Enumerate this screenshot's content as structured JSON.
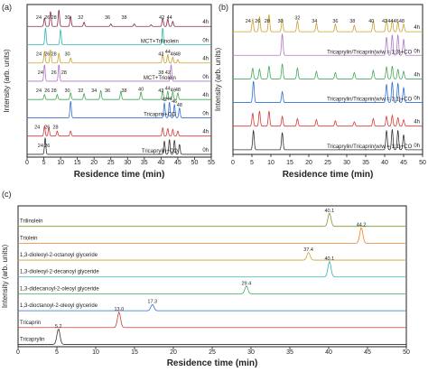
{
  "chart_data": [
    {
      "panel": "(a)",
      "type": "line",
      "xlabel": "Residence time (min)",
      "ylabel": "Intensity (arb. units)",
      "xlim": [
        0,
        55
      ],
      "xticks": [
        "0",
        "5",
        "10",
        "15",
        "20",
        "25",
        "30",
        "35",
        "40",
        "45",
        "50",
        "55"
      ],
      "traces": [
        {
          "label": "4h",
          "side": "right",
          "color": "#8b2a4a",
          "peaks": [
            [
              5.2,
              0.5
            ],
            [
              7,
              0.9
            ],
            [
              9.5,
              1.0
            ],
            [
              13,
              0.6
            ],
            [
              17,
              0.25
            ],
            [
              25,
              0.15
            ],
            [
              32,
              0.15
            ],
            [
              37,
              0.1
            ],
            [
              40.5,
              0.5
            ],
            [
              42,
              0.45
            ],
            [
              43.5,
              0.3
            ]
          ],
          "peak_labels": [
            [
              "24",
              3.5
            ],
            [
              "26",
              6
            ],
            [
              "28",
              8
            ],
            [
              "30",
              12
            ],
            [
              "32",
              16
            ],
            [
              "36",
              24
            ],
            [
              "38",
              29
            ],
            [
              "42",
              40.2
            ],
            [
              "44",
              42.5
            ]
          ]
        },
        {
          "label": "0h",
          "side": "right",
          "color": "#2fb6b0",
          "peaks": [
            [
              5.5,
              1.0
            ],
            [
              10,
              0.9
            ],
            [
              40.5,
              1.0
            ]
          ],
          "peak_labels": []
        },
        {
          "label": "MCT+Trilinolein",
          "side": "center",
          "color": "#2fb6b0"
        },
        {
          "label": "4h",
          "side": "right",
          "color": "#c8a22e",
          "peaks": [
            [
              5.2,
              0.7
            ],
            [
              7,
              0.8
            ],
            [
              9.5,
              0.6
            ],
            [
              13,
              0.3
            ],
            [
              40.5,
              0.55
            ],
            [
              42,
              0.5
            ],
            [
              43.5,
              0.35
            ],
            [
              45,
              0.2
            ]
          ],
          "peak_labels": [
            [
              "24",
              3.5
            ],
            [
              "26",
              6
            ],
            [
              "28",
              8
            ],
            [
              "30",
              12
            ],
            [
              "42",
              40
            ],
            [
              "44",
              42
            ],
            [
              "46",
              43.6
            ],
            [
              "48",
              45
            ]
          ]
        },
        {
          "label": "0h",
          "side": "right",
          "color": "#b077c9",
          "peaks": [
            [
              5.2,
              1.0
            ],
            [
              9.5,
              1.0
            ],
            [
              43,
              1.0
            ]
          ],
          "peak_labels": [
            [
              "24",
              4
            ],
            [
              "26",
              8
            ],
            [
              "28",
              11
            ],
            [
              "38",
              40
            ],
            [
              "42",
              42
            ]
          ]
        },
        {
          "label": "MCT+Triolein",
          "side": "center",
          "color": "#b077c9"
        },
        {
          "label": "4h",
          "side": "right",
          "color": "#45a85a",
          "peaks": [
            [
              5.2,
              0.3
            ],
            [
              9,
              0.3
            ],
            [
              13,
              0.4
            ],
            [
              17,
              0.35
            ],
            [
              22,
              0.55
            ],
            [
              28,
              0.5
            ],
            [
              34,
              0.45
            ],
            [
              40.5,
              0.55
            ],
            [
              42,
              0.5
            ],
            [
              43.5,
              0.45
            ],
            [
              45,
              0.4
            ]
          ],
          "peak_labels": [
            [
              "24",
              3.5
            ],
            [
              "26",
              6
            ],
            [
              "28",
              8
            ],
            [
              "30",
              12
            ],
            [
              "32",
              16
            ],
            [
              "34",
              20
            ],
            [
              "36",
              24
            ],
            [
              "38",
              29
            ],
            [
              "40",
              34
            ],
            [
              "42",
              40
            ],
            [
              "44",
              42
            ],
            [
              "46",
              43.6
            ],
            [
              "48",
              45
            ]
          ]
        },
        {
          "label": "0h",
          "side": "right",
          "color": "#2e6fd6",
          "peaks": [
            [
              13,
              1.0
            ],
            [
              41,
              0.9
            ],
            [
              42.5,
              0.95
            ],
            [
              44,
              0.8
            ],
            [
              45.5,
              0.6
            ]
          ],
          "peak_labels": [
            [
              "42",
              41
            ],
            [
              "44",
              42.5
            ],
            [
              "46",
              44
            ],
            [
              "48",
              45.5
            ]
          ]
        },
        {
          "label": "Tricaprin+CO",
          "side": "center",
          "color": "#2e6fd6"
        },
        {
          "label": "4h",
          "side": "right",
          "color": "#d43b3b",
          "peaks": [
            [
              5.2,
              0.6
            ],
            [
              6.5,
              0.5
            ],
            [
              9,
              0.3
            ],
            [
              13,
              0.3
            ],
            [
              40.5,
              0.5
            ],
            [
              42,
              0.45
            ],
            [
              43.5,
              0.4
            ],
            [
              45,
              0.3
            ]
          ],
          "peak_labels": [
            [
              "24",
              3
            ],
            [
              "26",
              6
            ],
            [
              "28",
              8.5
            ]
          ]
        },
        {
          "label": "0h",
          "side": "right",
          "color": "#333333",
          "peaks": [
            [
              5.4,
              1.0
            ],
            [
              41,
              0.8
            ],
            [
              42.5,
              0.9
            ],
            [
              44,
              0.85
            ],
            [
              45.5,
              0.6
            ]
          ],
          "peak_labels": [
            [
              "24",
              4
            ],
            [
              "26",
              6
            ]
          ]
        },
        {
          "label": "Tricaprylin+CO",
          "side": "center",
          "color": "#333333"
        }
      ]
    },
    {
      "panel": "(b)",
      "type": "line",
      "xlabel": "Residence time (min)",
      "ylabel": "Intensity (arb. units)",
      "xlim": [
        0,
        50
      ],
      "xticks": [
        "0",
        "5",
        "10",
        "15",
        "20",
        "25",
        "30",
        "35",
        "40",
        "45",
        "50"
      ],
      "traces": [
        {
          "label": "4h",
          "color": "#c8a22e",
          "peaks": [
            [
              5.2,
              0.6
            ],
            [
              7,
              0.7
            ],
            [
              9.5,
              0.8
            ],
            [
              13,
              0.6
            ],
            [
              17,
              0.5
            ],
            [
              22,
              0.4
            ],
            [
              27,
              0.35
            ],
            [
              32,
              0.3
            ],
            [
              37,
              0.5
            ],
            [
              40.5,
              0.6
            ],
            [
              42,
              0.55
            ],
            [
              43.5,
              0.45
            ],
            [
              45,
              0.35
            ]
          ],
          "peak_labels": [
            [
              "24",
              4
            ],
            [
              "26",
              6.5
            ],
            [
              "28",
              9
            ],
            [
              "30",
              12.5
            ],
            [
              "32",
              17
            ],
            [
              "34",
              21.5
            ],
            [
              "36",
              27
            ],
            [
              "38",
              31.5
            ],
            [
              "40",
              36.5
            ],
            [
              "42",
              40
            ],
            [
              "44",
              41.5
            ],
            [
              "46",
              43
            ],
            [
              "48",
              44.5
            ]
          ]
        },
        {
          "label": "0h",
          "color": "#b077c9",
          "peaks": [
            [
              13,
              1.0
            ],
            [
              40.5,
              0.85
            ],
            [
              42,
              0.95
            ],
            [
              43.5,
              0.95
            ],
            [
              45,
              0.75
            ]
          ],
          "peak_labels": []
        },
        {
          "label": "Tricaprylin/Tricaprin(w/w = 1:3)+CO",
          "side": "center",
          "color": "#b077c9"
        },
        {
          "label": "4h",
          "color": "#45a85a",
          "peaks": [
            [
              5.2,
              0.5
            ],
            [
              7,
              0.45
            ],
            [
              9.5,
              0.6
            ],
            [
              13,
              0.7
            ],
            [
              17,
              0.5
            ],
            [
              22,
              0.35
            ],
            [
              27,
              0.3
            ],
            [
              32,
              0.3
            ],
            [
              37,
              0.4
            ],
            [
              40.5,
              0.55
            ],
            [
              42,
              0.6
            ],
            [
              43.5,
              0.45
            ],
            [
              45,
              0.35
            ]
          ],
          "peak_labels": []
        },
        {
          "label": "0h",
          "color": "#2e6fd6",
          "peaks": [
            [
              5.4,
              1.0
            ],
            [
              13,
              0.5
            ],
            [
              40.5,
              0.85
            ],
            [
              42,
              0.95
            ],
            [
              43.5,
              0.9
            ],
            [
              45,
              0.7
            ]
          ],
          "peak_labels": []
        },
        {
          "label": "Tricaprylin/Tricaprin(w/w = 3:1)+CO",
          "side": "center",
          "color": "#2e6fd6"
        },
        {
          "label": "4h",
          "color": "#d43b3b",
          "peaks": [
            [
              5.2,
              0.6
            ],
            [
              7,
              0.7
            ],
            [
              9.5,
              0.7
            ],
            [
              13,
              0.45
            ],
            [
              17,
              0.35
            ],
            [
              22,
              0.3
            ],
            [
              27,
              0.25
            ],
            [
              32,
              0.2
            ],
            [
              37,
              0.35
            ],
            [
              40.5,
              0.45
            ],
            [
              42,
              0.5
            ],
            [
              43.5,
              0.4
            ],
            [
              45,
              0.3
            ]
          ],
          "peak_labels": []
        },
        {
          "label": "0h",
          "color": "#333333",
          "peaks": [
            [
              5.4,
              0.9
            ],
            [
              13,
              0.8
            ],
            [
              40.5,
              0.9
            ],
            [
              42,
              0.95
            ],
            [
              43.5,
              0.9
            ],
            [
              45,
              0.7
            ]
          ],
          "peak_labels": []
        },
        {
          "label": "Tricaprylin/Tricaprin(w/w = 1:1)+CO",
          "side": "center",
          "color": "#333333"
        }
      ]
    },
    {
      "panel": "(c)",
      "type": "line",
      "xlabel": "Residence time (min)",
      "ylabel": "Intensity (arb. units)",
      "xlim": [
        0,
        50
      ],
      "xticks": [
        "0",
        "5",
        "10",
        "15",
        "20",
        "25",
        "30",
        "35",
        "40",
        "45",
        "50"
      ],
      "traces": [
        {
          "label": "Trilinolein",
          "color": "#7a9a2a",
          "peaks": [
            [
              40.1,
              0.85
            ]
          ],
          "peak_labels": [
            [
              "40.1",
              40.1
            ]
          ]
        },
        {
          "label": "Triolein",
          "color": "#f08020",
          "peaks": [
            [
              44.2,
              1.0
            ]
          ],
          "peak_labels": [
            [
              "44.2",
              44.2
            ]
          ]
        },
        {
          "label": "1,3-dioleoyl-2-octanoyl glyceride",
          "color": "#c8a22e",
          "peaks": [
            [
              37.4,
              0.5
            ]
          ],
          "peak_labels": [
            [
              "37.4",
              37.4
            ]
          ]
        },
        {
          "label": "1,3-dioleoyl-2-decanoyl glyceride",
          "color": "#2fb6b0",
          "peaks": [
            [
              40.1,
              1.0
            ]
          ],
          "peak_labels": [
            [
              "40.1",
              40.1
            ]
          ]
        },
        {
          "label": "1,3-didecanoyl-2-oleoyl glyceride",
          "color": "#45a85a",
          "peaks": [
            [
              29.4,
              0.5
            ]
          ],
          "peak_labels": [
            [
              "29.4",
              29.4
            ]
          ]
        },
        {
          "label": "1,3-dioctanoyl-2-oleoyl glyceride",
          "color": "#2e6fd6",
          "peaks": [
            [
              17.3,
              0.4
            ]
          ],
          "peak_labels": [
            [
              "17.3",
              17.3
            ]
          ]
        },
        {
          "label": "Tricaprin",
          "color": "#d43b3b",
          "peaks": [
            [
              13.0,
              1.0
            ]
          ],
          "peak_labels": [
            [
              "13.0",
              13.0
            ]
          ]
        },
        {
          "label": "Tricaprylin",
          "color": "#333333",
          "peaks": [
            [
              5.2,
              1.0
            ]
          ],
          "peak_labels": [
            [
              "5.2",
              5.2
            ]
          ]
        }
      ]
    }
  ],
  "labels": {
    "panel_a": "(a)",
    "panel_b": "(b)",
    "panel_c": "(c)",
    "xlabel": "Residence time (min)",
    "ylabel": "Intensity (arb. units)"
  }
}
